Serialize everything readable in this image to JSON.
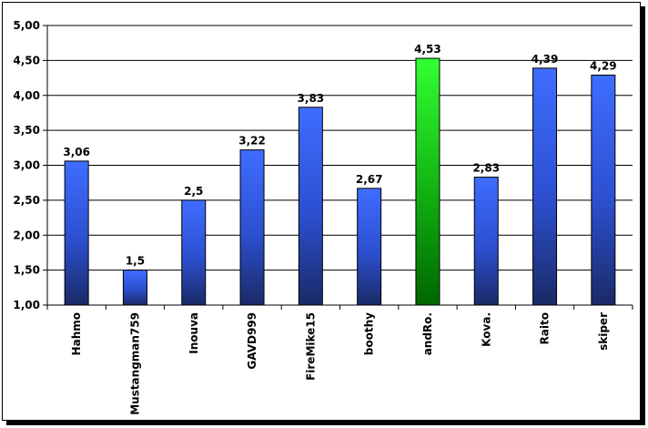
{
  "chart_data": {
    "type": "bar",
    "title": "",
    "xlabel": "",
    "ylabel": "",
    "categories": [
      "Hahmo",
      "Mustangman759",
      "Inouva",
      "GAVD999",
      "FireMike15",
      "boothy",
      "andRo.",
      "Kova.",
      "Raito",
      "skiper"
    ],
    "values": [
      3.06,
      1.5,
      2.5,
      3.22,
      3.83,
      2.67,
      4.53,
      2.83,
      4.39,
      4.29
    ],
    "data_labels": [
      "3,06",
      "1,5",
      "2,5",
      "3,22",
      "3,83",
      "2,67",
      "4,53",
      "2,83",
      "4,39",
      "4,29"
    ],
    "ylim": [
      1.0,
      5.0
    ],
    "y_ticks": [
      1.0,
      1.5,
      2.0,
      2.5,
      3.0,
      3.5,
      4.0,
      4.5,
      5.0
    ],
    "y_tick_labels": [
      "1,00",
      "1,50",
      "2,00",
      "2,50",
      "3,00",
      "3,50",
      "4,00",
      "4,50",
      "5,00"
    ],
    "grid": true,
    "legend": "none",
    "colors": {
      "bar_top": "#3f6dff",
      "bar_bottom": "#1a2a66",
      "highlight_top": "#33ff33",
      "highlight_bottom": "#006600",
      "highlight_index": 6,
      "axis": "#000000",
      "grid": "#000000"
    }
  }
}
